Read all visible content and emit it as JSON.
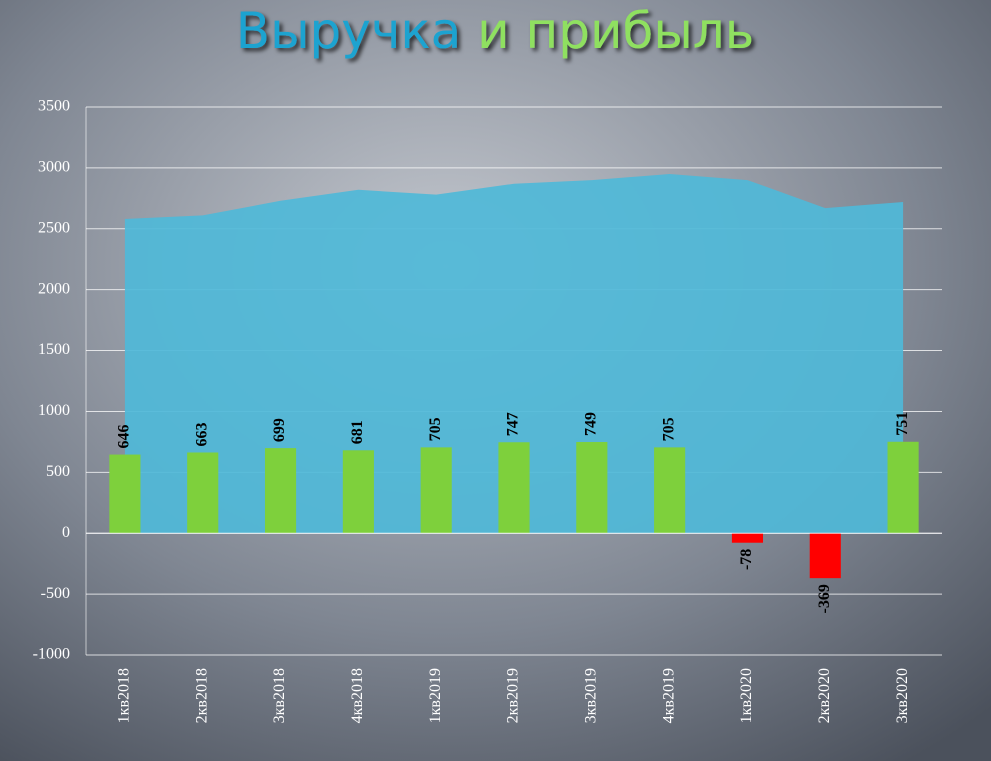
{
  "chart_data": {
    "type": "combo",
    "title": [
      "Выручка",
      "и прибыль"
    ],
    "categories": [
      "1кв2018",
      "2кв2018",
      "3кв2018",
      "4кв2018",
      "1кв2019",
      "2кв2019",
      "3кв2019",
      "4кв2019",
      "1кв2020",
      "2кв2020",
      "3кв2020"
    ],
    "series": [
      {
        "type": "area",
        "color": "#4fb8d8",
        "values": [
          2580,
          2610,
          2730,
          2820,
          2780,
          2870,
          2900,
          2950,
          2900,
          2670,
          2720
        ]
      },
      {
        "type": "bar",
        "color": "#7ed03c",
        "negative_color": "#ff0000",
        "values": [
          646,
          663,
          699,
          681,
          705,
          747,
          749,
          705,
          -78,
          -369,
          751
        ]
      }
    ],
    "ylim": [
      -1000,
      3500
    ],
    "yticks": [
      -1000,
      -500,
      0,
      500,
      1000,
      1500,
      2000,
      2500,
      3000,
      3500
    ],
    "grid": true
  }
}
